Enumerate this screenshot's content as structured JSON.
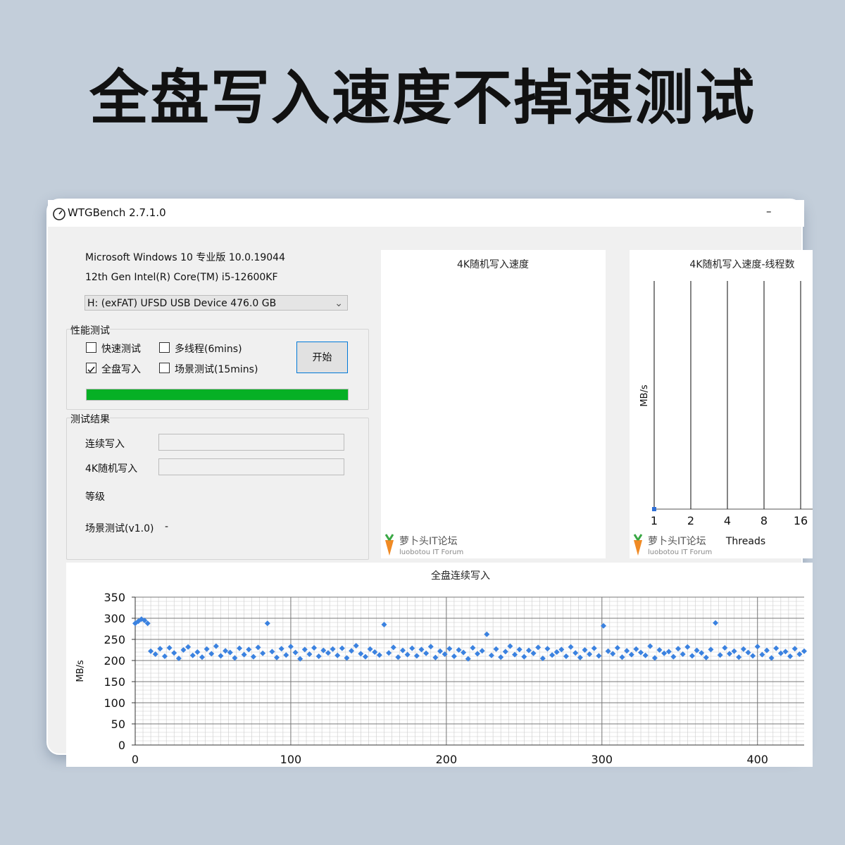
{
  "headline": "全盘写入速度不掉速测试",
  "window": {
    "title": "WTGBench 2.7.1.0",
    "minimize": "–"
  },
  "system": {
    "os": "Microsoft Windows 10 专业版 10.0.19044",
    "cpu": "12th Gen Intel(R) Core(TM) i5-12600KF",
    "drive": "H:  (exFAT)   UFSD  USB Device 476.0 GB"
  },
  "perf": {
    "label": "性能测试",
    "options": [
      {
        "label": "快速测试",
        "checked": false
      },
      {
        "label": "多线程(6mins)",
        "checked": false
      },
      {
        "label": "全盘写入",
        "checked": true
      },
      {
        "label": "场景测试(15mins)",
        "checked": false
      }
    ],
    "start": "开始",
    "progress": 100
  },
  "results": {
    "label": "测试结果",
    "seq": "连续写入",
    "rand4k": "4K随机写入",
    "grade": "等级",
    "scene": "场景测试(v1.0)",
    "scene_value": "-"
  },
  "watermark": {
    "name": "萝卜头IT论坛",
    "sub": "luobotou IT Forum"
  },
  "chart_data": [
    {
      "type": "line",
      "title": "4K随机写入速度"
    },
    {
      "type": "scatter",
      "title": "4K随机写入速度-线程数",
      "ylabel": "MB/s",
      "xlabel": "Threads",
      "categories": [
        "1",
        "2",
        "4",
        "8",
        "16"
      ],
      "values": [
        0,
        null,
        null,
        null,
        null
      ],
      "color": "#2f6fd6",
      "grid": true
    },
    {
      "type": "scatter",
      "title": "全盘连续写入",
      "ylabel": "MB/s",
      "color": "#3b82e0",
      "grid": true,
      "xlim": [
        0,
        430
      ],
      "xticks": [
        0,
        100,
        200,
        300,
        400
      ],
      "ylim": [
        0,
        350
      ],
      "yticks": [
        0,
        50,
        100,
        150,
        200,
        250,
        300,
        350
      ],
      "x": [
        0,
        2,
        4,
        6,
        8,
        10,
        13,
        16,
        19,
        22,
        25,
        28,
        31,
        34,
        37,
        40,
        43,
        46,
        49,
        52,
        55,
        58,
        61,
        64,
        67,
        70,
        73,
        76,
        79,
        82,
        85,
        88,
        91,
        94,
        97,
        100,
        103,
        106,
        109,
        112,
        115,
        118,
        121,
        124,
        127,
        130,
        133,
        136,
        139,
        142,
        145,
        148,
        151,
        154,
        157,
        160,
        163,
        166,
        169,
        172,
        175,
        178,
        181,
        184,
        187,
        190,
        193,
        196,
        199,
        202,
        205,
        208,
        211,
        214,
        217,
        220,
        223,
        226,
        229,
        232,
        235,
        238,
        241,
        244,
        247,
        250,
        253,
        256,
        259,
        262,
        265,
        268,
        271,
        274,
        277,
        280,
        283,
        286,
        289,
        292,
        295,
        298,
        301,
        304,
        307,
        310,
        313,
        316,
        319,
        322,
        325,
        328,
        331,
        334,
        337,
        340,
        343,
        346,
        349,
        352,
        355,
        358,
        361,
        364,
        367,
        370,
        373,
        376,
        379,
        382,
        385,
        388,
        391,
        394,
        397,
        400,
        403,
        406,
        409,
        412,
        415,
        418,
        421,
        424,
        427,
        430
      ],
      "values": [
        288,
        293,
        298,
        295,
        288,
        222,
        215,
        228,
        210,
        230,
        218,
        205,
        225,
        232,
        212,
        220,
        208,
        227,
        216,
        234,
        211,
        223,
        219,
        206,
        229,
        214,
        226,
        209,
        231,
        217,
        288,
        221,
        207,
        228,
        213,
        233,
        219,
        204,
        226,
        215,
        230,
        210,
        224,
        218,
        227,
        212,
        229,
        206,
        223,
        235,
        216,
        209,
        227,
        220,
        213,
        285,
        218,
        231,
        208,
        224,
        214,
        229,
        211,
        226,
        217,
        233,
        207,
        222,
        215,
        228,
        210,
        225,
        219,
        204,
        230,
        216,
        223,
        262,
        212,
        227,
        208,
        221,
        234,
        214,
        226,
        209,
        224,
        217,
        231,
        205,
        228,
        213,
        220,
        226,
        210,
        232,
        218,
        207,
        225,
        215,
        229,
        211,
        282,
        222,
        216,
        230,
        208,
        223,
        214,
        227,
        219,
        212,
        234,
        206,
        225,
        217,
        221,
        209,
        228,
        215,
        232,
        211,
        224,
        218,
        207,
        226,
        289,
        213,
        230,
        216,
        222,
        208,
        227,
        219,
        211,
        233,
        214,
        224,
        206,
        229,
        217,
        221,
        210,
        228,
        215,
        222
      ]
    }
  ]
}
